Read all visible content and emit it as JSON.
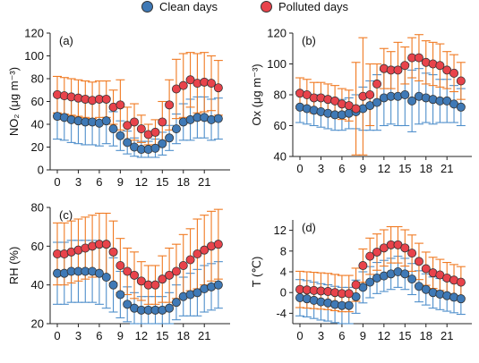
{
  "legend": {
    "clean_label": "Clean days",
    "polluted_label": "Polluted days",
    "clean_color": "#3f79b6",
    "polluted_color": "#e8434b",
    "clean_err_color": "#4f8fcb",
    "polluted_err_color": "#f07a22"
  },
  "chart_data": [
    {
      "type": "scatter",
      "panel_label": "(a)",
      "ylabel": "NO₂ (μg m⁻³)",
      "x": [
        0,
        1,
        2,
        3,
        4,
        5,
        6,
        7,
        8,
        9,
        10,
        11,
        12,
        13,
        14,
        15,
        16,
        17,
        18,
        19,
        20,
        21,
        22,
        23
      ],
      "xticks": [
        0,
        3,
        6,
        9,
        12,
        15,
        18,
        21
      ],
      "ylim": [
        0,
        120
      ],
      "yticks": [
        0,
        20,
        40,
        60,
        80,
        100,
        120
      ],
      "series": [
        {
          "name": "Clean days",
          "values": [
            47,
            46,
            44,
            43,
            42,
            42,
            41,
            43,
            36,
            30,
            24,
            20,
            18,
            18,
            19,
            23,
            28,
            36,
            42,
            44,
            46,
            46,
            44,
            45
          ],
          "err": [
            20,
            20,
            20,
            20,
            20,
            20,
            20,
            20,
            15,
            13,
            10,
            8,
            7,
            7,
            8,
            10,
            11,
            13,
            16,
            18,
            18,
            18,
            18,
            18
          ]
        },
        {
          "name": "Polluted days",
          "values": [
            66,
            65,
            64,
            63,
            62,
            61,
            62,
            62,
            55,
            57,
            39,
            42,
            36,
            31,
            33,
            42,
            57,
            71,
            74,
            79,
            76,
            77,
            76,
            72
          ],
          "err": [
            16,
            16,
            16,
            16,
            16,
            16,
            16,
            16,
            15,
            22,
            16,
            16,
            12,
            9,
            11,
            18,
            22,
            26,
            28,
            24,
            26,
            26,
            24,
            24
          ]
        }
      ]
    },
    {
      "type": "scatter",
      "panel_label": "(b)",
      "ylabel": "Ox (μg m⁻³)",
      "x": [
        0,
        1,
        2,
        3,
        4,
        5,
        6,
        7,
        8,
        9,
        10,
        11,
        12,
        13,
        14,
        15,
        16,
        17,
        18,
        19,
        20,
        21,
        22,
        23
      ],
      "xticks": [
        0,
        3,
        6,
        9,
        12,
        15,
        18,
        21
      ],
      "ylim": [
        40,
        120
      ],
      "yticks": [
        40,
        60,
        80,
        100,
        120
      ],
      "series": [
        {
          "name": "Clean days",
          "values": [
            72,
            71,
            70,
            69,
            68,
            67,
            67,
            68,
            69,
            71,
            73,
            75,
            78,
            79,
            79,
            80,
            76,
            79,
            78,
            77,
            76,
            76,
            74,
            72
          ],
          "err": [
            10,
            10,
            10,
            10,
            10,
            10,
            10,
            10,
            11,
            14,
            16,
            18,
            18,
            18,
            19,
            20,
            20,
            18,
            16,
            16,
            14,
            14,
            12,
            12
          ]
        },
        {
          "name": "Polluted days",
          "values": [
            81,
            80,
            78,
            78,
            77,
            76,
            74,
            73,
            71,
            79,
            80,
            87,
            97,
            96,
            96,
            99,
            104,
            104,
            101,
            100,
            99,
            96,
            94,
            89
          ],
          "err": [
            10,
            10,
            10,
            10,
            10,
            10,
            10,
            10,
            30,
            38,
            20,
            13,
            13,
            12,
            18,
            12,
            13,
            15,
            14,
            14,
            14,
            12,
            12,
            12
          ]
        }
      ]
    },
    {
      "type": "scatter",
      "panel_label": "(c)",
      "ylabel": "RH (%)",
      "x": [
        0,
        1,
        2,
        3,
        4,
        5,
        6,
        7,
        8,
        9,
        10,
        11,
        12,
        13,
        14,
        15,
        16,
        17,
        18,
        19,
        20,
        21,
        22,
        23
      ],
      "xticks": [
        0,
        3,
        6,
        9,
        12,
        15,
        18,
        21
      ],
      "ylim": [
        20,
        80
      ],
      "yticks": [
        20,
        40,
        60,
        80
      ],
      "series": [
        {
          "name": "Clean days",
          "values": [
            46,
            46,
            47,
            47,
            47,
            47,
            46,
            44,
            40,
            35,
            30,
            28,
            27,
            27,
            27,
            27,
            28,
            31,
            34,
            35,
            36,
            38,
            39,
            40
          ],
          "err": [
            16,
            16,
            16,
            16,
            16,
            16,
            16,
            16,
            14,
            12,
            9,
            8,
            7,
            7,
            7,
            7,
            8,
            9,
            10,
            11,
            12,
            12,
            12,
            12
          ]
        },
        {
          "name": "Polluted days",
          "values": [
            56,
            56,
            57,
            58,
            59,
            60,
            61,
            61,
            57,
            50,
            47,
            45,
            42,
            40,
            40,
            43,
            45,
            47,
            50,
            53,
            56,
            58,
            60,
            61
          ],
          "err": [
            16,
            16,
            16,
            16,
            16,
            16,
            16,
            16,
            16,
            14,
            12,
            12,
            10,
            10,
            10,
            12,
            14,
            14,
            16,
            16,
            18,
            18,
            18,
            18
          ]
        }
      ]
    },
    {
      "type": "scatter",
      "panel_label": "(d)",
      "ylabel": "T (℃)",
      "x": [
        0,
        1,
        2,
        3,
        4,
        5,
        6,
        7,
        8,
        9,
        10,
        11,
        12,
        13,
        14,
        15,
        16,
        17,
        18,
        19,
        20,
        21,
        22,
        23
      ],
      "xticks": [
        0,
        3,
        6,
        9,
        12,
        15,
        18,
        21
      ],
      "ylim": [
        -6,
        14
      ],
      "yticks": [
        -4,
        0,
        4,
        8,
        12
      ],
      "series": [
        {
          "name": "Clean days",
          "values": [
            -1,
            -1.2,
            -1.5,
            -1.8,
            -2,
            -2.3,
            -2.5,
            -2.5,
            -0.8,
            1,
            2,
            2.8,
            3.2,
            3.6,
            4,
            3.6,
            2.6,
            1.2,
            0.6,
            0,
            -0.3,
            -0.6,
            -0.9,
            -1.2
          ],
          "err": [
            3.5,
            3.5,
            3.5,
            3.5,
            3.5,
            3.5,
            3.5,
            3.5,
            3.2,
            3,
            3,
            3,
            3,
            3,
            3,
            3,
            3,
            3,
            3,
            3,
            3,
            3,
            3,
            3
          ]
        },
        {
          "name": "Polluted days",
          "values": [
            0.6,
            0.5,
            0.4,
            0.3,
            0.2,
            0,
            -0.2,
            -0.2,
            1.5,
            5.2,
            7,
            7.8,
            8.6,
            9.2,
            9.2,
            8.6,
            7.6,
            6,
            4.6,
            3.8,
            3.4,
            2.8,
            2.4,
            2
          ],
          "err": [
            3.5,
            3.5,
            3.5,
            3.5,
            3.5,
            3.5,
            3.5,
            3.5,
            3.2,
            3.2,
            3.5,
            3.5,
            3.5,
            3.5,
            3.5,
            3.5,
            3.5,
            3.5,
            3.2,
            3,
            3,
            3,
            3,
            3
          ]
        }
      ]
    }
  ]
}
